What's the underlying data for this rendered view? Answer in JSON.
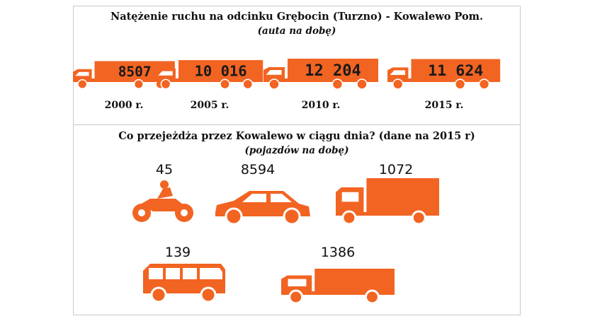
{
  "colors": {
    "accent": "#f26422",
    "text": "#111111",
    "frame": "#c9c9c9"
  },
  "chart_data": [
    {
      "type": "bar",
      "title": "Natężenie ruchu na odcinku Grębocin (Turzno) - Kowalewo Pom.",
      "subtitle": "(auta na dobę)",
      "categories": [
        "2000 r.",
        "2005 r.",
        "2010 r.",
        "2015 r."
      ],
      "values": [
        8507,
        10016,
        12204,
        11624
      ],
      "value_labels": [
        "8507",
        "10 016",
        "12 204",
        "11 624"
      ]
    },
    {
      "type": "table",
      "title": "Co przejeżdża przez Kowalewo w ciągu dnia? (dane na 2015 r)",
      "subtitle": "(pojazdów na dobę)",
      "icons": [
        "motorcycle-icon",
        "car-icon",
        "truck-icon",
        "bus-icon",
        "truck-icon"
      ],
      "values": [
        45,
        8594,
        1072,
        139,
        1386
      ],
      "value_labels": [
        "45",
        "8594",
        "1072",
        "139",
        "1386"
      ]
    }
  ]
}
